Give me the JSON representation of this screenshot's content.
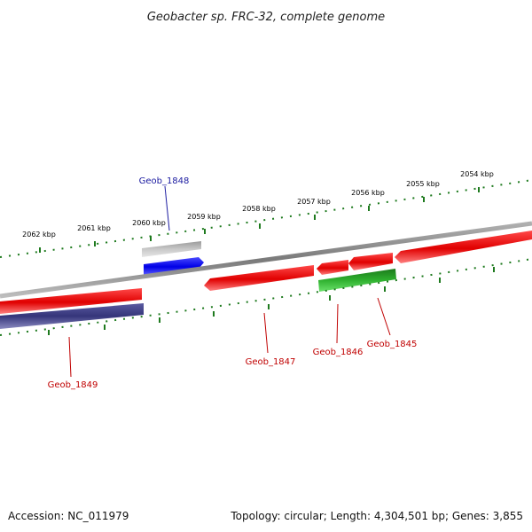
{
  "title": "Geobacter sp. FRC-32, complete genome",
  "footer": {
    "accession": "Accession: NC_011979",
    "summary": "Topology: circular; Length: 4,304,501 bp; Genes: 3,855"
  },
  "ticks": [
    {
      "label": "2062 kbp"
    },
    {
      "label": "2061 kbp"
    },
    {
      "label": "2060 kbp"
    },
    {
      "label": "2059 kbp"
    },
    {
      "label": "2058 kbp"
    },
    {
      "label": "2057 kbp"
    },
    {
      "label": "2056 kbp"
    },
    {
      "label": "2055 kbp"
    },
    {
      "label": "2054 kbp"
    }
  ],
  "genes": [
    {
      "id": "Geob_1848",
      "label": "Geob_1848",
      "strand": "forward",
      "color": "#1a1aa0"
    },
    {
      "id": "Geob_1849",
      "label": "Geob_1849",
      "strand": "reverse",
      "color": "#c00000"
    },
    {
      "id": "Geob_1847",
      "label": "Geob_1847",
      "strand": "reverse",
      "color": "#c00000"
    },
    {
      "id": "Geob_1846",
      "label": "Geob_1846",
      "strand": "reverse",
      "color": "#c00000"
    },
    {
      "id": "Geob_1845",
      "label": "Geob_1845",
      "strand": "reverse",
      "color": "#c00000"
    }
  ],
  "colors": {
    "backbone": "#888888",
    "tick": "#1e7a1e",
    "cds_forward": "#1010e0",
    "cds_reverse": "#e01010",
    "rna": "#b8b8b8",
    "gc_track": "#2eaa2e",
    "skew_track": "#4a4a8a",
    "label_forward": "#1a1aa0",
    "label_reverse": "#c00000"
  }
}
